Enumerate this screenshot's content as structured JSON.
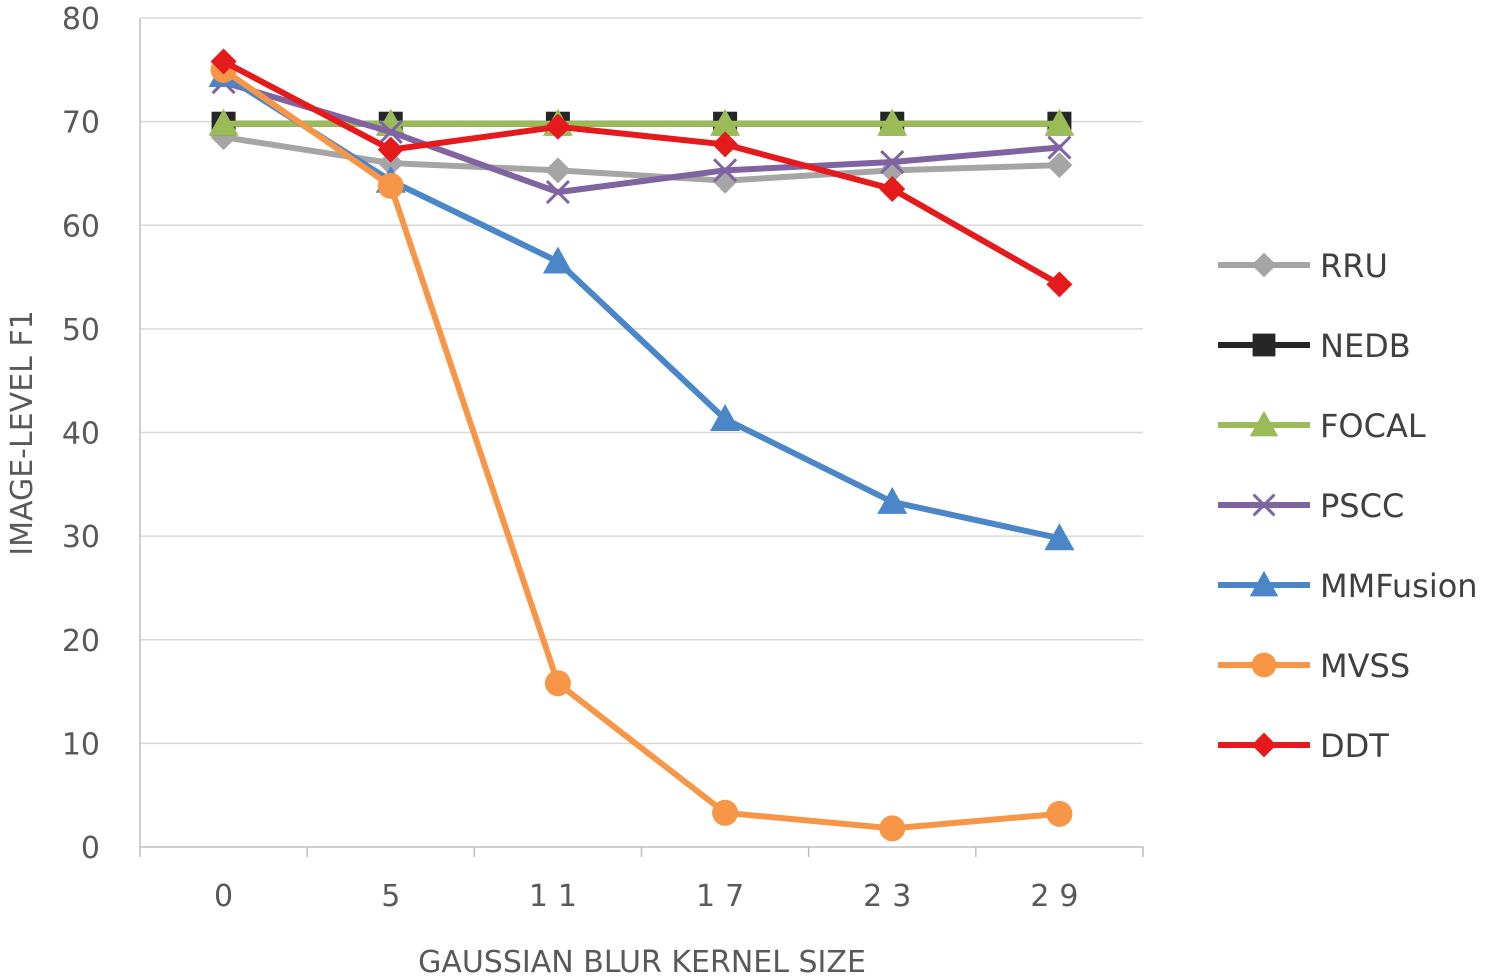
{
  "chart_data": {
    "type": "line",
    "title": "",
    "xlabel": "GAUSSIAN BLUR KERNEL SIZE",
    "ylabel": "IMAGE-LEVEL F1",
    "categories": [
      "0",
      "5",
      "11",
      "17",
      "23",
      "29"
    ],
    "y_ticks": [
      "0",
      "10",
      "20",
      "30",
      "40",
      "50",
      "60",
      "70",
      "80"
    ],
    "ylim": [
      0,
      80
    ],
    "grid": "horizontal",
    "legend_position": "right",
    "series": [
      {
        "name": "RRU",
        "color": "#a5a5a5",
        "marker": "diamond",
        "values": [
          68.5,
          66.0,
          65.3,
          64.3,
          65.3,
          65.8
        ]
      },
      {
        "name": "NEDB",
        "color": "#262626",
        "marker": "square",
        "values": [
          69.8,
          69.8,
          69.8,
          69.8,
          69.8,
          69.8
        ]
      },
      {
        "name": "FOCAL",
        "color": "#9bbb59",
        "marker": "triangle",
        "values": [
          69.8,
          69.8,
          69.8,
          69.8,
          69.8,
          69.8
        ]
      },
      {
        "name": "PSCC",
        "color": "#8064a2",
        "marker": "x",
        "values": [
          73.8,
          69.0,
          63.2,
          65.3,
          66.1,
          67.5
        ]
      },
      {
        "name": "MMFusion",
        "color": "#4a86c8",
        "marker": "triangle",
        "values": [
          74.5,
          64.3,
          56.5,
          41.3,
          33.3,
          29.8
        ]
      },
      {
        "name": "MVSS",
        "color": "#f79646",
        "marker": "circle",
        "values": [
          75.0,
          63.8,
          15.8,
          3.3,
          1.8,
          3.2
        ]
      },
      {
        "name": "DDT",
        "color": "#e41a1c",
        "marker": "diamond",
        "values": [
          75.8,
          67.3,
          69.5,
          67.8,
          63.5,
          54.3
        ]
      }
    ]
  }
}
